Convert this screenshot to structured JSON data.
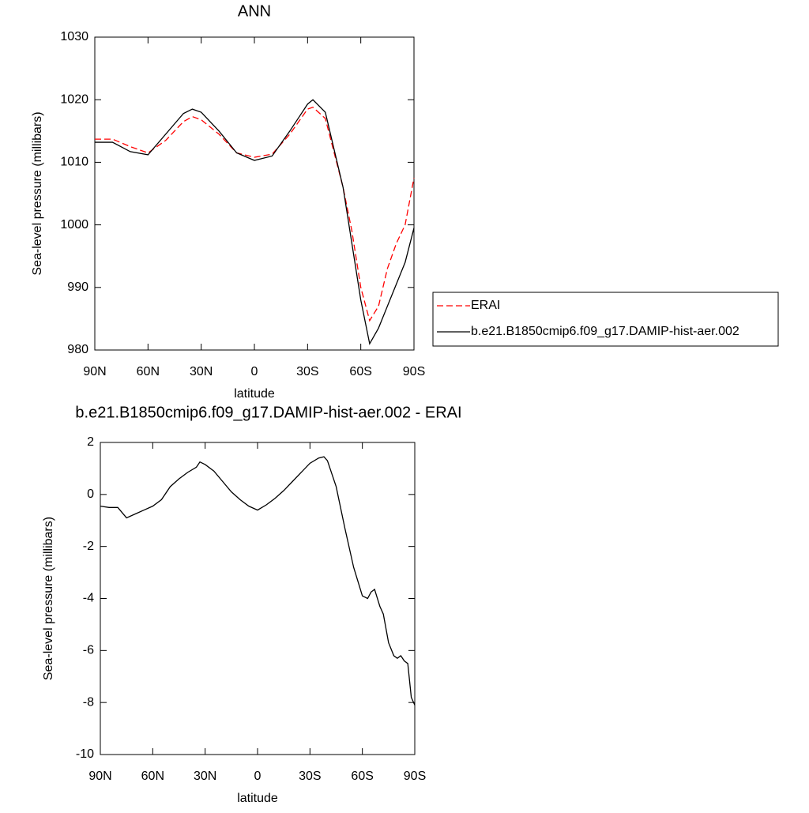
{
  "chart_data": [
    {
      "type": "line",
      "title": "ANN",
      "x_label": "latitude",
      "y_label": "Sea-level pressure (millibars)",
      "x": [
        90,
        80,
        70,
        60,
        50,
        40,
        35,
        30,
        20,
        10,
        0,
        -10,
        -20,
        -30,
        -33,
        -40,
        -50,
        -55,
        -60,
        -65,
        -70,
        -75,
        -80,
        -85,
        -90
      ],
      "series": [
        {
          "name": "ERAI",
          "color": "#ff0000",
          "linestyle": "dashed",
          "values": [
            1013.7,
            1013.7,
            1012.5,
            1011.5,
            1013.5,
            1016.5,
            1017.3,
            1016.8,
            1014.5,
            1011.5,
            1010.8,
            1011.3,
            1014.5,
            1018.5,
            1018.8,
            1017,
            1006,
            999,
            990,
            984.7,
            987,
            993,
            997,
            1000,
            1007.5
          ]
        },
        {
          "name": "b.e21.B1850cmip6.f09_g17.DAMIP-hist-aer.002",
          "color": "#000000",
          "linestyle": "solid",
          "values": [
            1013.2,
            1013.2,
            1011.7,
            1011.2,
            1014.5,
            1017.8,
            1018.5,
            1018,
            1015,
            1011.5,
            1010.3,
            1011,
            1015,
            1019.3,
            1020,
            1018,
            1006,
            997,
            988,
            981,
            983.5,
            987,
            990.5,
            994,
            999.5
          ]
        }
      ],
      "xlim": [
        90,
        -90
      ],
      "xticks": [
        {
          "value": 90,
          "label": "90N"
        },
        {
          "value": 60,
          "label": "60N"
        },
        {
          "value": 30,
          "label": "30N"
        },
        0,
        {
          "value": -30,
          "label": "30S"
        },
        {
          "value": -60,
          "label": "60S"
        },
        {
          "value": -90,
          "label": "90S"
        }
      ],
      "ylim": [
        980,
        1030
      ],
      "yticks": [
        980,
        990,
        1000,
        1010,
        1020,
        1030
      ],
      "legend": "right"
    },
    {
      "type": "line",
      "title": "b.e21.B1850cmip6.f09_g17.DAMIP-hist-aer.002 - ERAI",
      "x_label": "latitude",
      "y_label": "Sea-level pressure (millibars)",
      "x": [
        90,
        85,
        80,
        75,
        70,
        65,
        60,
        55,
        50,
        45,
        40,
        35,
        33,
        30,
        25,
        20,
        15,
        10,
        5,
        0,
        -5,
        -10,
        -15,
        -20,
        -25,
        -30,
        -35,
        -38,
        -40,
        -45,
        -50,
        -55,
        -60,
        -63,
        -65,
        -67,
        -70,
        -72,
        -75,
        -78,
        -80,
        -82,
        -84,
        -86,
        -88,
        -90
      ],
      "series": [
        {
          "color": "#000000",
          "linestyle": "solid",
          "values": [
            -0.45,
            -0.5,
            -0.5,
            -0.9,
            -0.75,
            -0.6,
            -0.45,
            -0.2,
            0.3,
            0.6,
            0.85,
            1.05,
            1.25,
            1.15,
            0.9,
            0.5,
            0.1,
            -0.2,
            -0.45,
            -0.6,
            -0.4,
            -0.15,
            0.15,
            0.5,
            0.85,
            1.2,
            1.4,
            1.45,
            1.3,
            0.3,
            -1.3,
            -2.8,
            -3.9,
            -4.0,
            -3.75,
            -3.65,
            -4.3,
            -4.6,
            -5.7,
            -6.2,
            -6.3,
            -6.2,
            -6.4,
            -6.5,
            -7.8,
            -8.1
          ]
        }
      ],
      "xlim": [
        90,
        -90
      ],
      "xticks": [
        {
          "value": 90,
          "label": "90N"
        },
        {
          "value": 60,
          "label": "60N"
        },
        {
          "value": 30,
          "label": "30N"
        },
        0,
        {
          "value": -30,
          "label": "30S"
        },
        {
          "value": -60,
          "label": "60S"
        },
        {
          "value": -90,
          "label": "90S"
        }
      ],
      "ylim": [
        -10,
        2
      ],
      "yticks": [
        -10,
        -8,
        -6,
        -4,
        -2,
        0,
        2
      ]
    }
  ]
}
